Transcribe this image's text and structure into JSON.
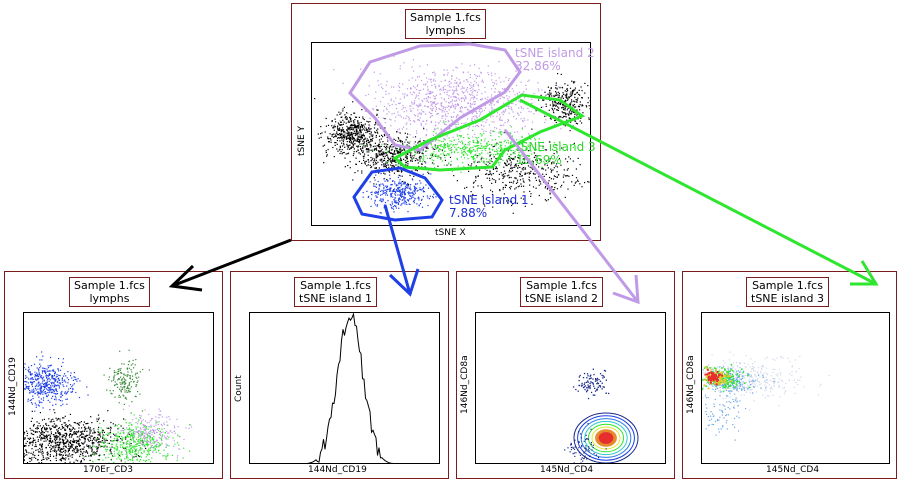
{
  "top_panel": {
    "title_line1": "Sample 1.fcs",
    "title_line2": "lymphs",
    "x_label": "tSNE X",
    "y_label": "tSNE Y",
    "gates": [
      {
        "name": "tSNE island 2",
        "percent": "32.86%",
        "color": "#c09ae6"
      },
      {
        "name": "tSNE island 3",
        "percent": "15.69%",
        "color": "#2ed62e"
      },
      {
        "name": "tSNE island 1",
        "percent": "7.88%",
        "color": "#1e2ed6"
      }
    ]
  },
  "panels": [
    {
      "title_line1": "Sample 1.fcs",
      "title_line2": "lymphs",
      "x_label": "170Er_CD3",
      "y_label": "144Nd_CD19",
      "plot": "dot"
    },
    {
      "title_line1": "Sample 1.fcs",
      "title_line2": "tSNE island 1",
      "x_label": "144Nd_CD19",
      "y_label": "Count",
      "plot": "histogram"
    },
    {
      "title_line1": "Sample 1.fcs",
      "title_line2": "tSNE island 2",
      "x_label": "145Nd_CD4",
      "y_label": "146Nd_CD8a",
      "plot": "contour"
    },
    {
      "title_line1": "Sample 1.fcs",
      "title_line2": "tSNE island 3",
      "x_label": "145Nd_CD4",
      "y_label": "146Nd_CD8a",
      "plot": "density"
    }
  ],
  "colors": {
    "border": "#7a1c1c",
    "lymphs_arrow": "#000000",
    "island1": "#1e40e6",
    "island2": "#c09ae6",
    "island3": "#2ee62e"
  }
}
